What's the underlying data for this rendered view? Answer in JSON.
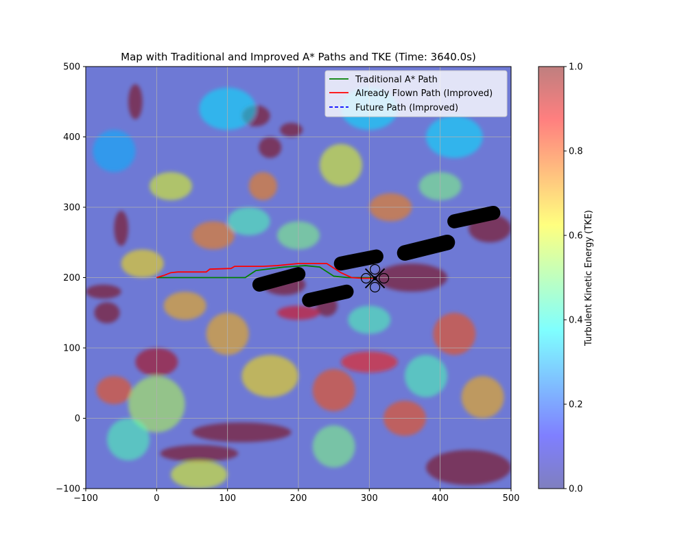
{
  "chart_data": {
    "type": "heatmap",
    "title": "Map with Traditional and Improved A* Paths and TKE (Time: 3640.0s)",
    "xlabel": "",
    "ylabel": "",
    "xlim": [
      -100,
      500
    ],
    "ylim": [
      -100,
      500
    ],
    "x_ticks": [
      -100,
      0,
      100,
      200,
      300,
      400,
      500
    ],
    "y_ticks": [
      -100,
      0,
      100,
      200,
      300,
      400,
      500
    ],
    "grid": true,
    "legend_position": "top-right",
    "colorbar": {
      "label": "Turbulent Kinetic Energy (TKE)",
      "range": [
        0.0,
        1.0
      ],
      "ticks": [
        "0.0",
        "0.2",
        "0.4",
        "0.6",
        "0.8",
        "1.0"
      ],
      "colormap": "jet",
      "alpha": 0.5
    },
    "heatmap_blobs": [
      {
        "x": 120,
        "y": -20,
        "w": 70,
        "h": 14,
        "v": 1.0
      },
      {
        "x": 60,
        "y": -50,
        "w": 55,
        "h": 12,
        "v": 1.0
      },
      {
        "x": 440,
        "y": -70,
        "w": 60,
        "h": 25,
        "v": 1.0
      },
      {
        "x": -70,
        "y": 150,
        "w": 18,
        "h": 15,
        "v": 1.0
      },
      {
        "x": -75,
        "y": 180,
        "w": 25,
        "h": 10,
        "v": 1.0
      },
      {
        "x": -50,
        "y": 270,
        "w": 10,
        "h": 25,
        "v": 1.0
      },
      {
        "x": -30,
        "y": 450,
        "w": 10,
        "h": 25,
        "v": 1.0
      },
      {
        "x": 140,
        "y": 430,
        "w": 20,
        "h": 15,
        "v": 1.0
      },
      {
        "x": 160,
        "y": 385,
        "w": 16,
        "h": 15,
        "v": 1.0
      },
      {
        "x": 190,
        "y": 410,
        "w": 16,
        "h": 10,
        "v": 1.0
      },
      {
        "x": 180,
        "y": 190,
        "w": 30,
        "h": 15,
        "v": 1.0
      },
      {
        "x": 240,
        "y": 160,
        "w": 15,
        "h": 15,
        "v": 1.0
      },
      {
        "x": 470,
        "y": 270,
        "w": 30,
        "h": 20,
        "v": 1.0
      },
      {
        "x": 360,
        "y": 200,
        "w": 50,
        "h": 20,
        "v": 1.0
      },
      {
        "x": 0,
        "y": 80,
        "w": 30,
        "h": 20,
        "v": 0.95
      },
      {
        "x": 200,
        "y": 150,
        "w": 30,
        "h": 10,
        "v": 0.9
      },
      {
        "x": 300,
        "y": 80,
        "w": 40,
        "h": 15,
        "v": 0.85
      },
      {
        "x": -60,
        "y": 40,
        "w": 25,
        "h": 20,
        "v": 0.8
      },
      {
        "x": 250,
        "y": 40,
        "w": 30,
        "h": 30,
        "v": 0.8
      },
      {
        "x": 350,
        "y": 0,
        "w": 30,
        "h": 25,
        "v": 0.8
      },
      {
        "x": 420,
        "y": 120,
        "w": 30,
        "h": 30,
        "v": 0.8
      },
      {
        "x": 80,
        "y": 260,
        "w": 30,
        "h": 20,
        "v": 0.75
      },
      {
        "x": 330,
        "y": 300,
        "w": 30,
        "h": 20,
        "v": 0.75
      },
      {
        "x": 150,
        "y": 330,
        "w": 20,
        "h": 20,
        "v": 0.75
      },
      {
        "x": 40,
        "y": 160,
        "w": 30,
        "h": 20,
        "v": 0.7
      },
      {
        "x": 100,
        "y": 120,
        "w": 30,
        "h": 30,
        "v": 0.7
      },
      {
        "x": 460,
        "y": 30,
        "w": 30,
        "h": 30,
        "v": 0.7
      },
      {
        "x": -20,
        "y": 220,
        "w": 30,
        "h": 20,
        "v": 0.65
      },
      {
        "x": 160,
        "y": 60,
        "w": 40,
        "h": 30,
        "v": 0.65
      },
      {
        "x": 20,
        "y": 330,
        "w": 30,
        "h": 20,
        "v": 0.6
      },
      {
        "x": 260,
        "y": 360,
        "w": 30,
        "h": 30,
        "v": 0.6
      },
      {
        "x": 60,
        "y": -80,
        "w": 40,
        "h": 20,
        "v": 0.6
      },
      {
        "x": 0,
        "y": 20,
        "w": 40,
        "h": 40,
        "v": 0.55
      },
      {
        "x": 250,
        "y": -40,
        "w": 30,
        "h": 30,
        "v": 0.5
      },
      {
        "x": 400,
        "y": 330,
        "w": 30,
        "h": 20,
        "v": 0.5
      },
      {
        "x": 200,
        "y": 260,
        "w": 30,
        "h": 20,
        "v": 0.5
      },
      {
        "x": 130,
        "y": 280,
        "w": 30,
        "h": 20,
        "v": 0.45
      },
      {
        "x": -40,
        "y": -30,
        "w": 30,
        "h": 30,
        "v": 0.45
      },
      {
        "x": 300,
        "y": 140,
        "w": 30,
        "h": 20,
        "v": 0.45
      },
      {
        "x": 380,
        "y": 60,
        "w": 30,
        "h": 30,
        "v": 0.45
      },
      {
        "x": 100,
        "y": 440,
        "w": 40,
        "h": 30,
        "v": 0.35
      },
      {
        "x": 300,
        "y": 440,
        "w": 40,
        "h": 30,
        "v": 0.35
      },
      {
        "x": 420,
        "y": 400,
        "w": 40,
        "h": 30,
        "v": 0.35
      },
      {
        "x": -60,
        "y": 380,
        "w": 30,
        "h": 30,
        "v": 0.3
      }
    ],
    "obstacles": [
      {
        "x1": 145,
        "y1": 190,
        "x2": 200,
        "y2": 205,
        "thickness": 20
      },
      {
        "x1": 215,
        "y1": 168,
        "x2": 268,
        "y2": 180,
        "thickness": 20
      },
      {
        "x1": 260,
        "y1": 220,
        "x2": 310,
        "y2": 230,
        "thickness": 20
      },
      {
        "x1": 350,
        "y1": 235,
        "x2": 410,
        "y2": 250,
        "thickness": 22
      },
      {
        "x1": 420,
        "y1": 280,
        "x2": 475,
        "y2": 292,
        "thickness": 20
      }
    ],
    "series": [
      {
        "name": "Traditional A* Path",
        "color": "#008000",
        "style": "solid",
        "points": [
          [
            0,
            200
          ],
          [
            125,
            200
          ],
          [
            140,
            210
          ],
          [
            180,
            215
          ],
          [
            210,
            217
          ],
          [
            230,
            215
          ],
          [
            250,
            202
          ],
          [
            270,
            200
          ],
          [
            300,
            200
          ],
          [
            308,
            200
          ]
        ]
      },
      {
        "name": "Already Flown Path (Improved)",
        "color": "#ff0000",
        "style": "solid",
        "points": [
          [
            0,
            200
          ],
          [
            10,
            203
          ],
          [
            20,
            207
          ],
          [
            30,
            208
          ],
          [
            70,
            208
          ],
          [
            75,
            212
          ],
          [
            105,
            213
          ],
          [
            110,
            216
          ],
          [
            150,
            216
          ],
          [
            170,
            217
          ],
          [
            200,
            220
          ],
          [
            240,
            220
          ],
          [
            260,
            207
          ],
          [
            275,
            200
          ],
          [
            290,
            199
          ],
          [
            308,
            199
          ]
        ]
      },
      {
        "name": "Future Path (Improved)",
        "color": "#0000ff",
        "style": "dashed",
        "points": [
          [
            308,
            199
          ],
          [
            311,
            200
          ]
        ]
      }
    ],
    "drone_position": [
      308,
      199
    ]
  }
}
